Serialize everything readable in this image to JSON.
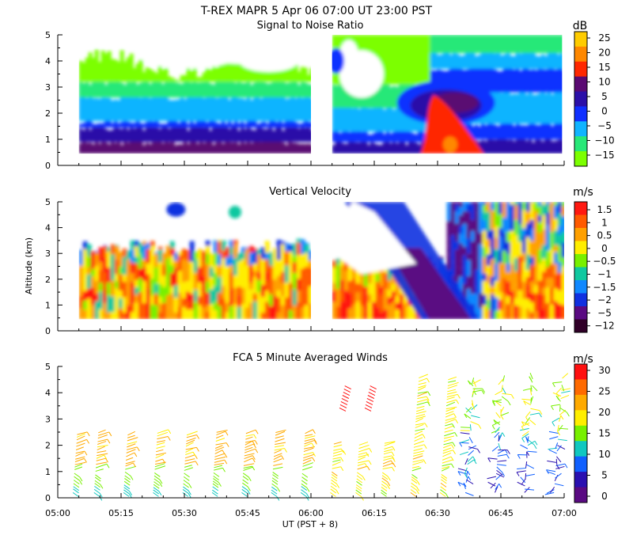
{
  "figure": {
    "title": "T-REX  MAPR  5 Apr 06  07:00 UT  23:00  PST",
    "xlabel": "UT  (PST + 8)",
    "ylabel": "Altitude (km)",
    "time_ticks": [
      "05:00",
      "05:15",
      "05:30",
      "05:45",
      "06:00",
      "06:15",
      "06:30",
      "06:45",
      "07:00"
    ]
  },
  "chart_data": [
    {
      "type": "heatmap",
      "title": "Signal to Noise Ratio",
      "xlabel": "UT  (PST + 8)",
      "ylabel": "Altitude (km)",
      "xlim": [
        "05:00",
        "07:00"
      ],
      "ylim": [
        0,
        5
      ],
      "yticks": [
        "0",
        "1",
        "2",
        "3",
        "4",
        "5"
      ],
      "colorbar": {
        "unit": "dB",
        "labels": [
          "25",
          "20",
          "15",
          "10",
          "5",
          "0",
          "−5",
          "−10",
          "−15"
        ],
        "colors": [
          "#ffcc00",
          "#ff8800",
          "#ff2800",
          "#5a0a72",
          "#2c10a8",
          "#1030ff",
          "#10b4ff",
          "#28e878",
          "#7cff00"
        ]
      },
      "data_gap_ut": [
        "06:00",
        "06:05"
      ]
    },
    {
      "type": "heatmap",
      "title": "Vertical Velocity",
      "xlabel": "UT  (PST + 8)",
      "ylabel": "Altitude (km)",
      "xlim": [
        "05:00",
        "07:00"
      ],
      "ylim": [
        0,
        5
      ],
      "yticks": [
        "0",
        "1",
        "2",
        "3",
        "4",
        "5"
      ],
      "colorbar": {
        "unit": "m/s",
        "labels": [
          "1.5",
          "1",
          "0.5",
          "0",
          "−0.5",
          "−1",
          "−1.5",
          "−2",
          "−5",
          "−12"
        ],
        "colors": [
          "#ff1810",
          "#ff5a00",
          "#ffa000",
          "#ffee00",
          "#78f000",
          "#10c8a0",
          "#1088ff",
          "#1030e0",
          "#5a0a82",
          "#300028"
        ]
      },
      "data_gap_ut": [
        "06:00",
        "06:05"
      ]
    },
    {
      "type": "scatter",
      "title": "FCA 5 Minute Averaged Winds",
      "xlabel": "UT  (PST + 8)",
      "ylabel": "Altitude (km)",
      "xlim": [
        "05:00",
        "07:00"
      ],
      "ylim": [
        0,
        5
      ],
      "yticks": [
        "0",
        "1",
        "2",
        "3",
        "4",
        "5"
      ],
      "colorbar": {
        "unit": "m/s",
        "labels": [
          "30",
          "25",
          "20",
          "15",
          "10",
          "5",
          "0"
        ],
        "colors": [
          "#ff1010",
          "#ff6a00",
          "#ffaa00",
          "#ffee00",
          "#78f000",
          "#10c8c0",
          "#1060ff",
          "#2a10b0",
          "#5a0a82"
        ]
      },
      "profile_times_min": [
        5,
        10,
        17,
        24,
        31,
        38,
        45,
        52,
        59,
        66,
        72,
        78,
        85,
        92,
        98,
        105,
        112,
        119
      ]
    }
  ]
}
